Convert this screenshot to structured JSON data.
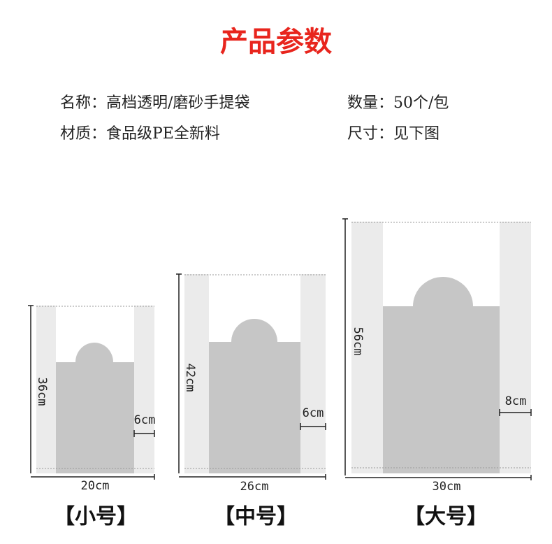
{
  "title": "产品参数",
  "specs": [
    [
      "名称：高档透明/磨砂手提袋",
      "数量：50个/包"
    ],
    [
      "材质：食品级PE全新料",
      "尺寸：见下图"
    ]
  ],
  "bags": [
    {
      "name": "【小号】",
      "height": "36cm",
      "width": "20cm",
      "handle": "6cm"
    },
    {
      "name": "【中号】",
      "height": "42cm",
      "width": "26cm",
      "handle": "6cm"
    },
    {
      "name": "【大号】",
      "height": "56cm",
      "width": "30cm",
      "handle": "8cm"
    }
  ]
}
